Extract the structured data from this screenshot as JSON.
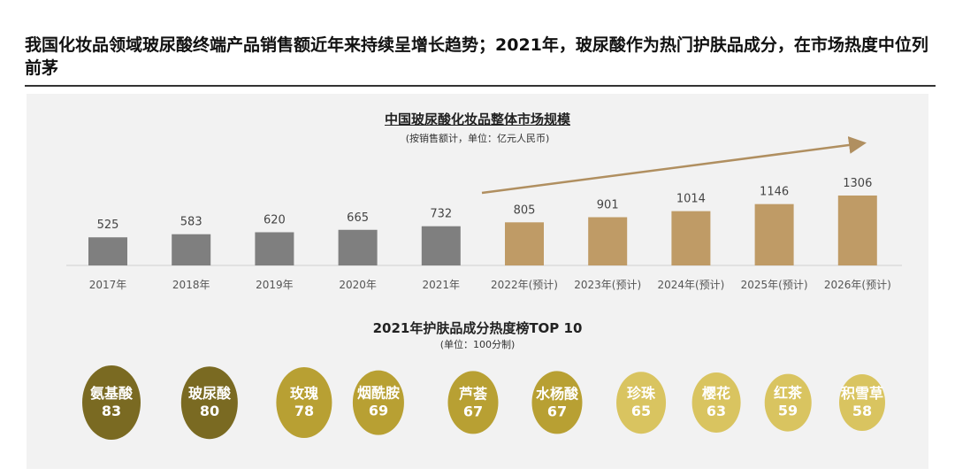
{
  "header": {
    "title": "我国化妆品领域玻尿酸终端产品销售额近年来持续呈增长趋势；2021年，玻尿酸作为热门护肤品成分，在市场热度中位列前茅"
  },
  "chart_data": [
    {
      "type": "bar",
      "title": "中国玻尿酸化妆品整体市场规模",
      "subtitle": "(按销售额计，单位：亿元人民币)",
      "categories": [
        "2017年",
        "2018年",
        "2019年",
        "2020年",
        "2021年",
        "2022年(预计)",
        "2023年(预计)",
        "2024年(预计)",
        "2025年(预计)",
        "2026年(预计)"
      ],
      "values": [
        525,
        583,
        620,
        665,
        732,
        805,
        901,
        1014,
        1146,
        1306
      ],
      "colors": {
        "actual": "#7f7f7f",
        "forecast": "#bf9b66",
        "arrow": "#b08f60"
      },
      "grid": false
    },
    {
      "type": "table",
      "title": "2021年护肤品成分热度榜TOP 10",
      "subtitle": "(单位：100分制)",
      "items": [
        {
          "name": "氨基酸",
          "value": 83,
          "color": "#7a6a22"
        },
        {
          "name": "玻尿酸",
          "value": 80,
          "color": "#7a6a22"
        },
        {
          "name": "玫瑰",
          "value": 78,
          "color": "#b8a033"
        },
        {
          "name": "烟酰胺",
          "value": 69,
          "color": "#b8a033"
        },
        {
          "name": "芦荟",
          "value": 67,
          "color": "#b8a033"
        },
        {
          "name": "水杨酸",
          "value": 67,
          "color": "#b8a033"
        },
        {
          "name": "珍珠",
          "value": 65,
          "color": "#d9c460"
        },
        {
          "name": "樱花",
          "value": 63,
          "color": "#d9c460"
        },
        {
          "name": "红茶",
          "value": 59,
          "color": "#d9c460"
        },
        {
          "name": "积雪草",
          "value": 58,
          "color": "#d9c460"
        }
      ]
    }
  ]
}
